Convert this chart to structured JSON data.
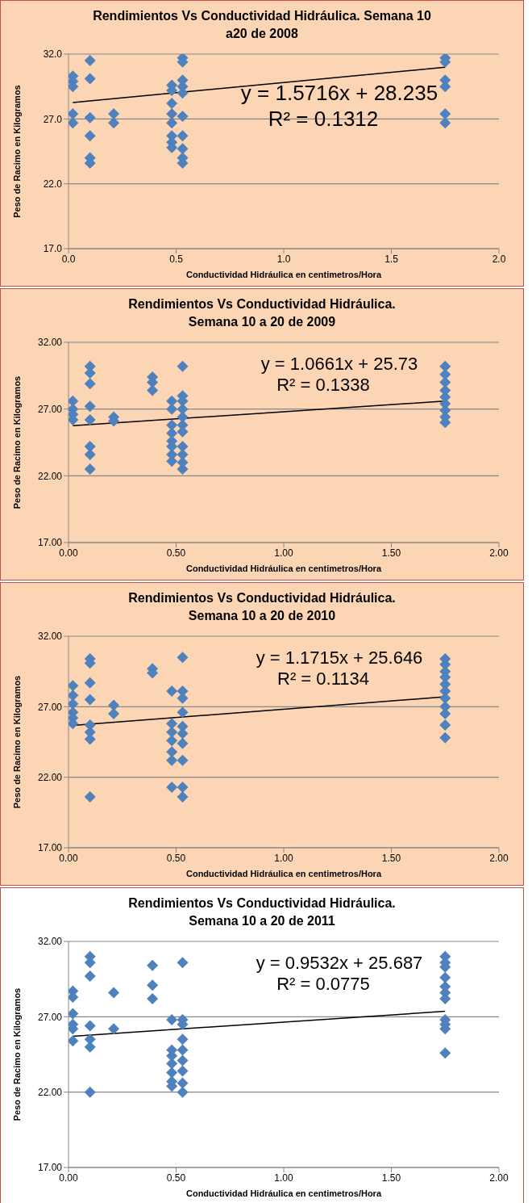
{
  "chart_data": [
    {
      "type": "scatter",
      "title": "Rendimientos Vs Conductividad Hidráulica. Semana 10 a20 de 2008",
      "xlabel": "Conductividad Hidráulica en centimetros/Hora",
      "ylabel": "Peso de Racimo en Kilogramos",
      "grid": "y",
      "legend": false,
      "xlim": [
        0,
        2
      ],
      "xticks": [
        {
          "value": 0,
          "label": "0.0"
        },
        {
          "value": 0.5,
          "label": "0.5"
        },
        {
          "value": 1,
          "label": "1.0"
        },
        {
          "value": 1.5,
          "label": "1.5"
        },
        {
          "value": 2,
          "label": "2.0"
        }
      ],
      "ylim": [
        17,
        32
      ],
      "yticks": [
        {
          "value": 17,
          "label": "17.0"
        },
        {
          "value": 22,
          "label": "22.0"
        },
        {
          "value": 27,
          "label": "27.0"
        },
        {
          "value": 32,
          "label": "32.0"
        }
      ],
      "annotations": [
        "y = 1.5716x + 28.235",
        "R² = 0.1312"
      ],
      "series": [
        {
          "marker": "diamond",
          "color": "#4f81bd",
          "x": [
            0.02,
            0.02,
            0.02,
            0.02,
            0.02,
            0.1,
            0.1,
            0.1,
            0.1,
            0.1,
            0.1,
            0.21,
            0.21,
            0.48,
            0.48,
            0.48,
            0.48,
            0.48,
            0.48,
            0.48,
            0.48,
            0.53,
            0.53,
            0.53,
            0.53,
            0.53,
            0.53,
            0.53,
            0.53,
            0.53,
            0.53,
            1.75,
            1.75,
            1.75,
            1.75,
            1.75,
            1.75
          ],
          "values": [
            30.3,
            29.9,
            29.5,
            27.4,
            26.7,
            31.5,
            30.1,
            27.1,
            25.7,
            24.0,
            23.6,
            27.4,
            26.7,
            29.6,
            29.2,
            28.2,
            27.4,
            26.7,
            25.7,
            25.2,
            24.8,
            31.7,
            31.4,
            30.0,
            29.5,
            29.0,
            27.2,
            25.7,
            24.7,
            24.0,
            23.6,
            31.7,
            31.4,
            30.0,
            29.5,
            27.4,
            26.7
          ]
        },
        {
          "type": "line",
          "color": "#000000",
          "x": [
            0.02,
            1.75
          ],
          "values": [
            28.27,
            30.99
          ]
        }
      ]
    },
    {
      "type": "scatter",
      "title": "Rendimientos Vs Conductividad Hidráulica. Semana 10 a 20 de 2009",
      "xlabel": "Conductividad Hidráulica en centimetros/Hora",
      "ylabel": "Peso de Racimo en Kilogramos",
      "grid": "y",
      "legend": false,
      "xlim": [
        0,
        2
      ],
      "xticks": [
        {
          "value": 0,
          "label": "0.00"
        },
        {
          "value": 0.5,
          "label": "0.50"
        },
        {
          "value": 1,
          "label": "1.00"
        },
        {
          "value": 1.5,
          "label": "1.50"
        },
        {
          "value": 2,
          "label": "2.00"
        }
      ],
      "ylim": [
        17,
        32
      ],
      "yticks": [
        {
          "value": 17,
          "label": "17.00"
        },
        {
          "value": 22,
          "label": "22.00"
        },
        {
          "value": 27,
          "label": "27.00"
        },
        {
          "value": 32,
          "label": "32.00"
        }
      ],
      "annotations": [
        "y = 1.0661x + 25.73",
        "R² = 0.1338"
      ],
      "series": [
        {
          "marker": "diamond",
          "color": "#4f81bd",
          "x": [
            0.02,
            0.02,
            0.02,
            0.02,
            0.1,
            0.1,
            0.1,
            0.1,
            0.1,
            0.1,
            0.1,
            0.1,
            0.21,
            0.21,
            0.39,
            0.39,
            0.39,
            0.48,
            0.48,
            0.48,
            0.48,
            0.48,
            0.48,
            0.48,
            0.48,
            0.53,
            0.53,
            0.53,
            0.53,
            0.53,
            0.53,
            0.53,
            0.53,
            0.53,
            0.53,
            0.53,
            1.75,
            1.75,
            1.75,
            1.75,
            1.75,
            1.75,
            1.75,
            1.75,
            1.75
          ],
          "values": [
            27.6,
            27.0,
            26.6,
            26.2,
            30.2,
            29.7,
            28.9,
            27.2,
            26.2,
            24.2,
            23.6,
            22.5,
            26.4,
            26.1,
            29.4,
            29.0,
            28.4,
            27.6,
            27.0,
            25.8,
            25.2,
            24.6,
            24.2,
            23.6,
            23.1,
            30.2,
            28.0,
            27.6,
            27.0,
            26.4,
            25.8,
            25.3,
            24.2,
            23.6,
            23.0,
            22.5,
            30.2,
            29.6,
            29.0,
            28.4,
            27.9,
            27.4,
            26.9,
            26.4,
            26.0
          ]
        },
        {
          "type": "line",
          "color": "#000000",
          "x": [
            0.02,
            1.75
          ],
          "values": [
            25.75,
            27.6
          ]
        }
      ]
    },
    {
      "type": "scatter",
      "title": "Rendimientos Vs Conductividad Hidráulica. Semana 10 a 20 de 2010",
      "xlabel": "Conductividad Hidráulica en centimetros/Hora",
      "ylabel": "Peso de Racimo en Kilogramos",
      "grid": "y",
      "legend": false,
      "xlim": [
        0,
        2
      ],
      "xticks": [
        {
          "value": 0,
          "label": "0.00"
        },
        {
          "value": 0.5,
          "label": "0.50"
        },
        {
          "value": 1,
          "label": "1.00"
        },
        {
          "value": 1.5,
          "label": "1.50"
        },
        {
          "value": 2,
          "label": "2.00"
        }
      ],
      "ylim": [
        17,
        32
      ],
      "yticks": [
        {
          "value": 17,
          "label": "17.00"
        },
        {
          "value": 22,
          "label": "22.00"
        },
        {
          "value": 27,
          "label": "27.00"
        },
        {
          "value": 32,
          "label": "32.00"
        }
      ],
      "annotations": [
        "y = 1.1715x + 25.646",
        "R² = 0.1134"
      ],
      "series": [
        {
          "marker": "diamond",
          "color": "#4f81bd",
          "x": [
            0.02,
            0.02,
            0.02,
            0.02,
            0.02,
            0.02,
            0.1,
            0.1,
            0.1,
            0.1,
            0.1,
            0.1,
            0.1,
            0.1,
            0.21,
            0.21,
            0.39,
            0.39,
            0.48,
            0.48,
            0.48,
            0.48,
            0.48,
            0.48,
            0.48,
            0.53,
            0.53,
            0.53,
            0.53,
            0.53,
            0.53,
            0.53,
            0.53,
            0.53,
            0.53,
            1.75,
            1.75,
            1.75,
            1.75,
            1.75,
            1.75,
            1.75,
            1.75,
            1.75,
            1.75,
            1.75
          ],
          "values": [
            28.5,
            27.8,
            27.2,
            26.6,
            26.2,
            25.8,
            30.4,
            30.1,
            28.7,
            27.5,
            25.7,
            25.2,
            24.7,
            20.6,
            27.1,
            26.5,
            29.7,
            29.4,
            28.1,
            25.8,
            25.2,
            24.6,
            23.8,
            23.2,
            21.3,
            30.5,
            28.1,
            27.6,
            26.6,
            25.6,
            25.1,
            24.4,
            23.2,
            21.3,
            20.6,
            30.4,
            30.0,
            29.5,
            29.1,
            28.6,
            28.1,
            27.6,
            27.0,
            26.5,
            25.7,
            24.8
          ]
        },
        {
          "type": "line",
          "color": "#000000",
          "x": [
            0.02,
            1.75
          ],
          "values": [
            25.67,
            27.7
          ]
        }
      ]
    },
    {
      "type": "scatter",
      "title": "Rendimientos Vs Conductividad Hidráulica. Semana 10 a 20 de 2011",
      "xlabel": "Conductividad Hidráulica en centimetros/Hora",
      "ylabel": "Peso de Racimo en Kilogramos",
      "grid": "y",
      "legend": false,
      "xlim": [
        0,
        2
      ],
      "xticks": [
        {
          "value": 0,
          "label": "0.00"
        },
        {
          "value": 0.5,
          "label": "0.50"
        },
        {
          "value": 1,
          "label": "1.00"
        },
        {
          "value": 1.5,
          "label": "1.50"
        },
        {
          "value": 2,
          "label": "2.00"
        }
      ],
      "ylim": [
        17,
        32
      ],
      "yticks": [
        {
          "value": 17,
          "label": "17.00"
        },
        {
          "value": 22,
          "label": "22.00"
        },
        {
          "value": 27,
          "label": "27.00"
        },
        {
          "value": 32,
          "label": "32.00"
        }
      ],
      "annotations": [
        "y = 0.9532x + 25.687",
        "R² = 0.0775"
      ],
      "series": [
        {
          "marker": "diamond",
          "color": "#4f81bd",
          "x": [
            0.02,
            0.02,
            0.02,
            0.02,
            0.02,
            0.02,
            0.1,
            0.1,
            0.1,
            0.1,
            0.1,
            0.1,
            0.1,
            0.21,
            0.21,
            0.39,
            0.39,
            0.39,
            0.48,
            0.48,
            0.48,
            0.48,
            0.48,
            0.48,
            0.48,
            0.53,
            0.53,
            0.53,
            0.53,
            0.53,
            0.53,
            0.53,
            0.53,
            0.53,
            1.75,
            1.75,
            1.75,
            1.75,
            1.75,
            1.75,
            1.75,
            1.75,
            1.75,
            1.75,
            1.75
          ],
          "values": [
            28.7,
            28.3,
            27.2,
            26.5,
            26.2,
            25.4,
            31.0,
            30.6,
            29.7,
            26.4,
            25.5,
            25.0,
            22.0,
            28.6,
            26.2,
            30.4,
            29.1,
            28.2,
            26.8,
            24.8,
            24.4,
            23.9,
            23.3,
            22.7,
            22.4,
            30.6,
            26.8,
            26.5,
            25.5,
            24.8,
            24.1,
            23.4,
            22.6,
            22.0,
            31.0,
            30.6,
            30.3,
            29.6,
            29.0,
            28.6,
            28.2,
            26.8,
            26.5,
            26.2,
            24.6
          ]
        },
        {
          "type": "line",
          "color": "#000000",
          "x": [
            0.02,
            1.75
          ],
          "values": [
            25.71,
            27.36
          ]
        }
      ]
    }
  ]
}
